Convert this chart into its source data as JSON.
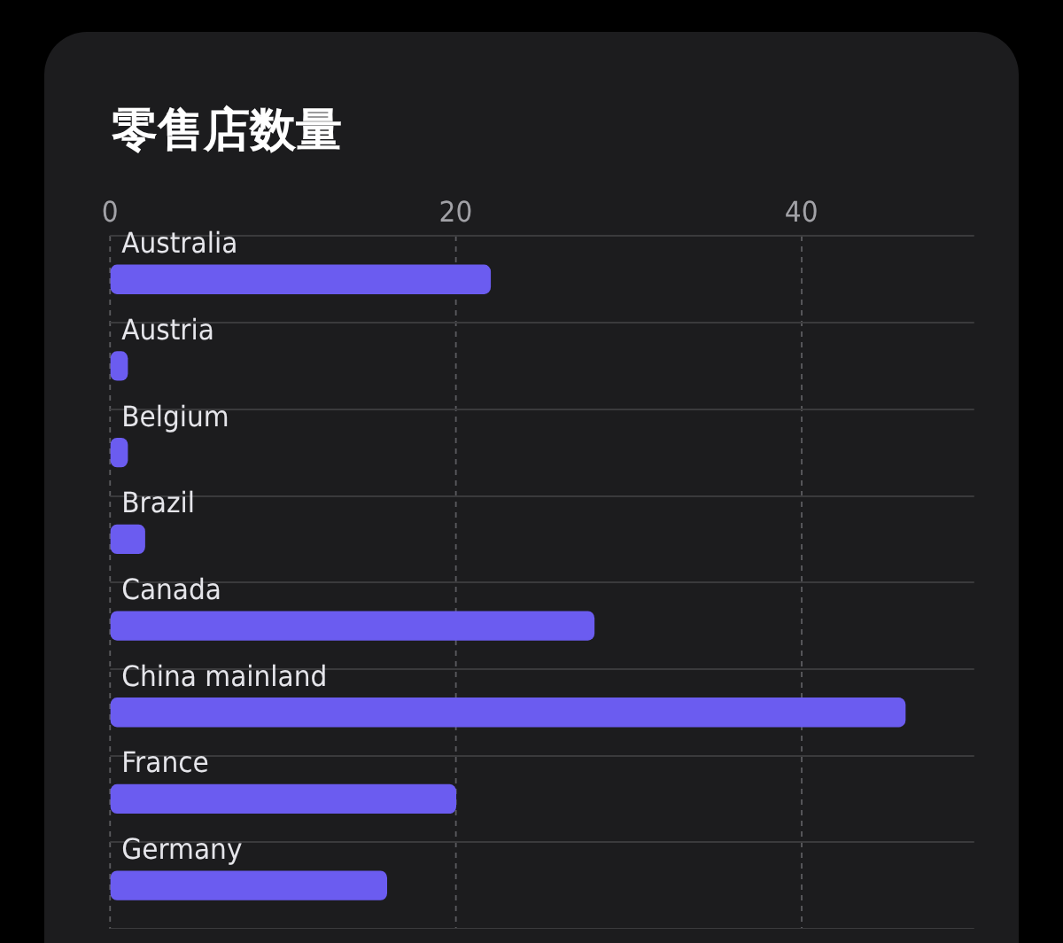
{
  "chart_data": {
    "type": "bar",
    "orientation": "horizontal",
    "title": "零售店数量",
    "categories": [
      "Australia",
      "Austria",
      "Belgium",
      "Brazil",
      "Canada",
      "China mainland",
      "France",
      "Germany"
    ],
    "values": [
      22,
      1,
      1,
      2,
      28,
      46,
      20,
      16
    ],
    "color": "#6b5cf0",
    "xlim": [
      0,
      50
    ],
    "xticks": [
      0,
      20,
      40
    ],
    "grid": true,
    "legend": false
  }
}
